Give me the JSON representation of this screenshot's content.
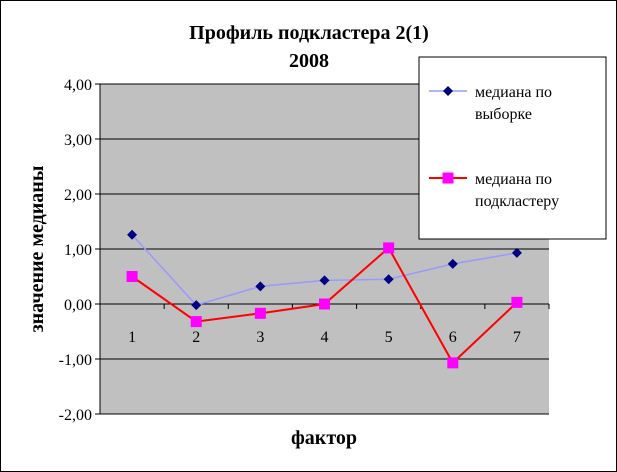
{
  "chart_data": {
    "type": "line",
    "title_lines": [
      "Профиль подкластера 2(1)",
      "2008"
    ],
    "xlabel": "фактор",
    "ylabel": "значение медианы",
    "categories": [
      "1",
      "2",
      "3",
      "4",
      "5",
      "6",
      "7"
    ],
    "y_ticks": [
      "4,00",
      "3,00",
      "2,00",
      "1,00",
      "0,00",
      "-1,00",
      "-2,00"
    ],
    "ylim": [
      -2,
      4
    ],
    "y_step": 1,
    "grid": true,
    "legend_position": "top-right",
    "series": [
      {
        "name": "медиана по выборке",
        "marker": "diamond",
        "line_color": "#9999ff",
        "marker_color": "#000080",
        "values": [
          1.26,
          -0.02,
          0.32,
          0.43,
          0.45,
          0.73,
          0.93
        ]
      },
      {
        "name": "медиана по подкластеру",
        "marker": "square",
        "line_color": "#ff0000",
        "marker_color": "#ff00ff",
        "values": [
          0.5,
          -0.32,
          -0.17,
          0.0,
          1.02,
          -1.07,
          0.03
        ]
      }
    ],
    "colors": {
      "plot_background": "#c0c0c0",
      "gridline": "#000000"
    }
  }
}
